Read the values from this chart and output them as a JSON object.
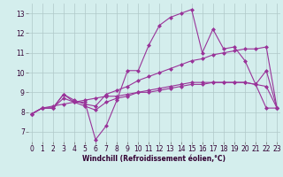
{
  "background_color": "#d4eeed",
  "grid_color": "#b0c8c8",
  "line_color": "#993399",
  "marker": "D",
  "markersize": 2,
  "linewidth": 0.8,
  "xlim": [
    -0.3,
    23.3
  ],
  "ylim": [
    6.5,
    13.5
  ],
  "yticks": [
    7,
    8,
    9,
    10,
    11,
    12,
    13
  ],
  "xticks": [
    0,
    1,
    2,
    3,
    4,
    5,
    6,
    7,
    8,
    9,
    10,
    11,
    12,
    13,
    14,
    15,
    16,
    17,
    18,
    19,
    20,
    21,
    22,
    23
  ],
  "xlabel": "Windchill (Refroidissement éolien,°C)",
  "xlabel_fontsize": 5.5,
  "tick_fontsize": 5.5,
  "series": [
    [
      7.9,
      8.2,
      8.2,
      8.9,
      8.5,
      8.5,
      6.6,
      7.3,
      8.6,
      10.1,
      10.1,
      11.4,
      12.4,
      12.8,
      13.0,
      13.2,
      11.0,
      12.2,
      11.2,
      11.3,
      10.6,
      9.4,
      10.1,
      8.2
    ],
    [
      7.9,
      8.2,
      8.2,
      8.9,
      8.6,
      8.4,
      8.3,
      8.9,
      9.1,
      9.3,
      9.6,
      9.8,
      10.0,
      10.2,
      10.4,
      10.6,
      10.7,
      10.9,
      11.0,
      11.1,
      11.2,
      11.2,
      11.3,
      8.2
    ],
    [
      7.9,
      8.2,
      8.2,
      8.7,
      8.5,
      8.3,
      8.1,
      8.5,
      8.7,
      8.8,
      9.0,
      9.1,
      9.2,
      9.3,
      9.4,
      9.5,
      9.5,
      9.5,
      9.5,
      9.5,
      9.5,
      9.4,
      8.2,
      8.2
    ],
    [
      7.9,
      8.2,
      8.3,
      8.4,
      8.5,
      8.6,
      8.7,
      8.8,
      8.8,
      8.9,
      9.0,
      9.0,
      9.1,
      9.2,
      9.3,
      9.4,
      9.4,
      9.5,
      9.5,
      9.5,
      9.5,
      9.4,
      9.3,
      8.2
    ]
  ]
}
